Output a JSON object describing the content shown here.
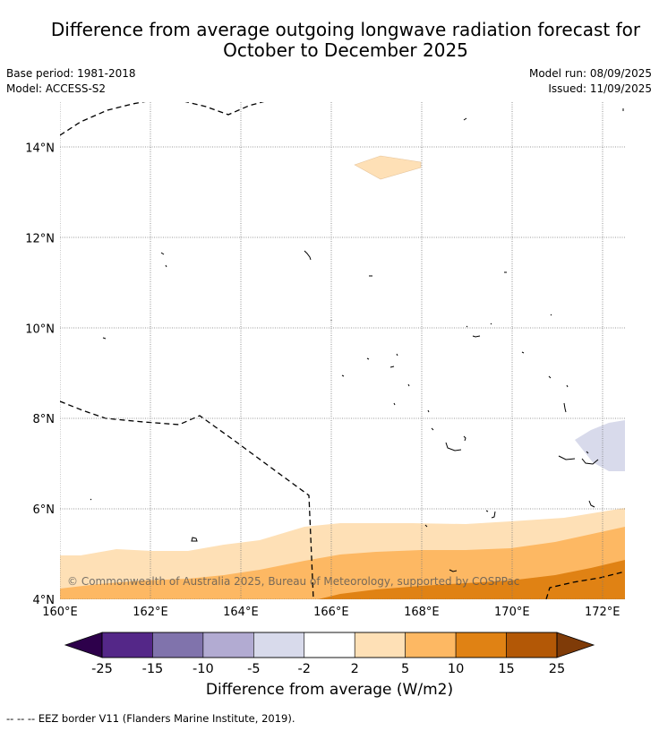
{
  "title_line1": "Difference from average outgoing longwave radiation forecast for",
  "title_line2": "October to December 2025",
  "base_period": "Base period: 1981-2018",
  "model": "Model: ACCESS-S2",
  "model_run": "Model run: 08/09/2025",
  "issued": "Issued: 11/09/2025",
  "copyright": "© Commonwealth of Australia 2025, Bureau of Meteorology, supported by COSPPac",
  "colorbar_title": "Difference from average (W/m2)",
  "footnote": "--  --  -- EEZ border V11 (Flanders Marine Institute, 2019).",
  "map": {
    "lon_range": [
      160,
      172.5
    ],
    "lat_range": [
      4,
      15
    ],
    "lon_ticks": [
      {
        "value": 160,
        "label": "160°E"
      },
      {
        "value": 162,
        "label": "162°E"
      },
      {
        "value": 164,
        "label": "164°E"
      },
      {
        "value": 166,
        "label": "166°E"
      },
      {
        "value": 168,
        "label": "168°E"
      },
      {
        "value": 170,
        "label": "170°E"
      },
      {
        "value": 172,
        "label": "172°E"
      }
    ],
    "lat_ticks": [
      {
        "value": 4,
        "label": "4°N"
      },
      {
        "value": 6,
        "label": "6°N"
      },
      {
        "value": 8,
        "label": "8°N"
      },
      {
        "value": 10,
        "label": "10°N"
      },
      {
        "value": 12,
        "label": "12°N"
      },
      {
        "value": 14,
        "label": "14°N"
      }
    ],
    "grid": true
  },
  "colorbar": {
    "ticks": [
      "-25",
      "-15",
      "-10",
      "-5",
      "-2",
      "2",
      "5",
      "10",
      "15",
      "25"
    ],
    "under_color": "#2d004b",
    "over_color": "#7f3b08",
    "bins": [
      {
        "range": "-25 to -15",
        "color": "#542788"
      },
      {
        "range": "-15 to -10",
        "color": "#8073ac"
      },
      {
        "range": "-10 to -5",
        "color": "#b2abd2"
      },
      {
        "range": "-5 to -2",
        "color": "#d8daeb"
      },
      {
        "range": "-2 to 2",
        "color": "#ffffff"
      },
      {
        "range": "2 to 5",
        "color": "#fee0b6"
      },
      {
        "range": "5 to 10",
        "color": "#fdb863"
      },
      {
        "range": "10 to 15",
        "color": "#e08214"
      },
      {
        "range": "15 to 25",
        "color": "#b35806"
      }
    ]
  }
}
